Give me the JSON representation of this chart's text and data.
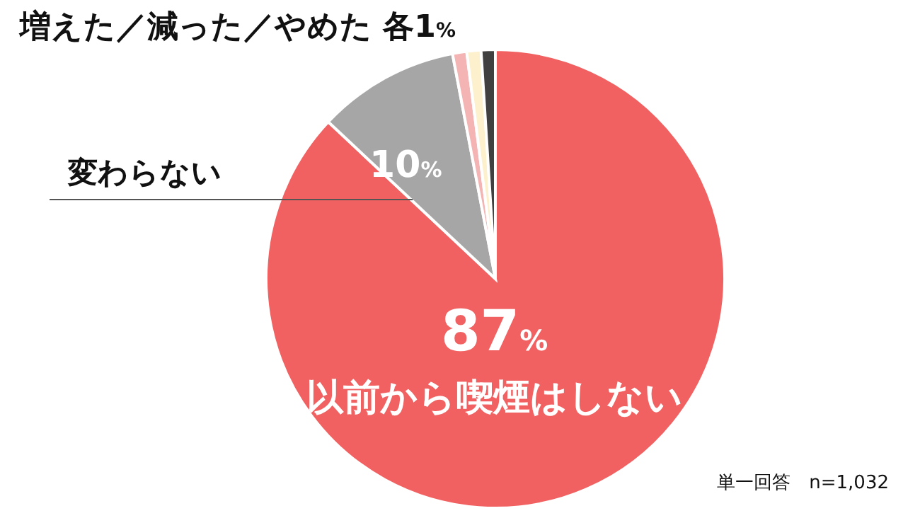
{
  "chart_data": {
    "type": "pie",
    "categories": [
      "以前から喫煙はしない",
      "変わらない",
      null,
      null,
      null
    ],
    "values": [
      87,
      10,
      1,
      1,
      1
    ],
    "colors": [
      "#f26161",
      "#a6a6a6",
      "#f4b4b4",
      "#fdf0cc",
      "#404040"
    ],
    "value_labels": [
      "87%",
      "10%",
      null,
      null,
      null
    ],
    "annotations": [
      "増えた／減った／やめた 各1%",
      "単一回答　n=1,032"
    ],
    "legend": false
  }
}
